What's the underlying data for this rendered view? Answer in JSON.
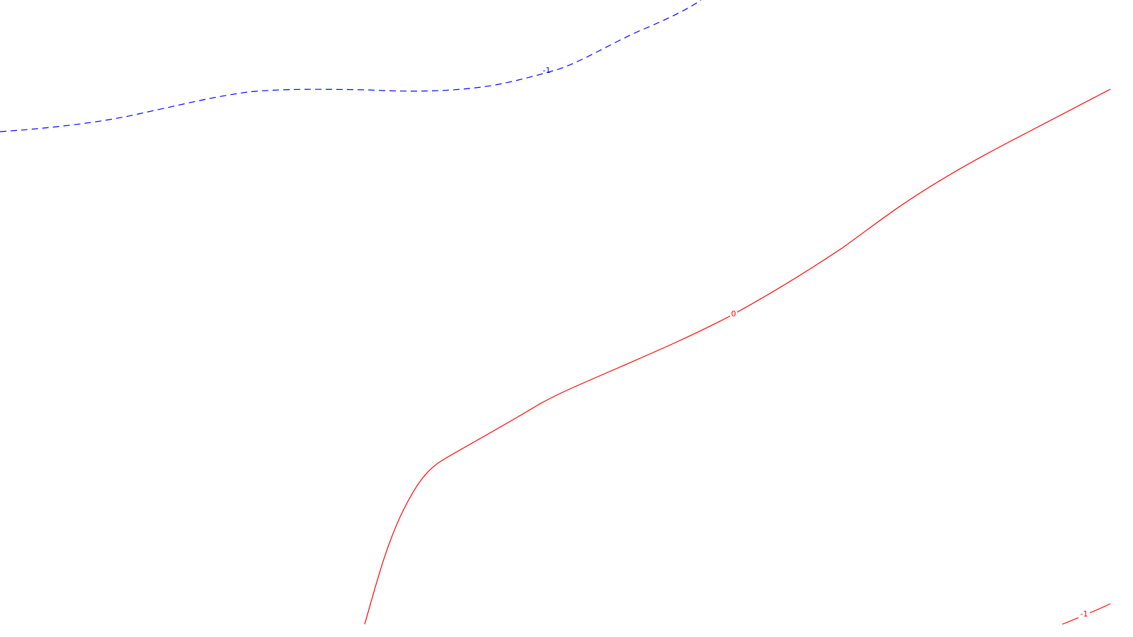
{
  "contours": [
    {
      "id": "blue-dashed",
      "color": "#0000ff",
      "style": "dashed",
      "label": "-1"
    },
    {
      "id": "red-main",
      "color": "#ff0000",
      "style": "solid",
      "label": "0"
    },
    {
      "id": "red-corner",
      "color": "#ff0000",
      "style": "solid",
      "label": "-1"
    }
  ]
}
